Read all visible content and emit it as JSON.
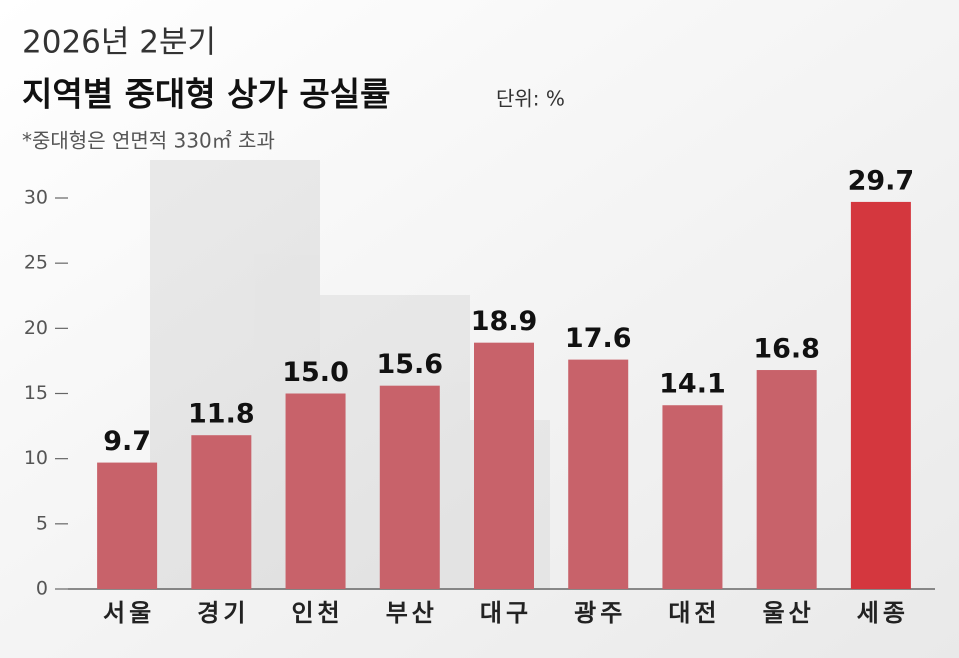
{
  "chart_data": {
    "type": "bar",
    "subtitle": "2026년 2분기",
    "title": "지역별 중대형 상가 공실률",
    "unit": "단위: %",
    "note": "*중대형은 연면적 330㎡ 초과",
    "categories": [
      "서울",
      "경기",
      "인천",
      "부산",
      "대구",
      "광주",
      "대전",
      "울산",
      "세종"
    ],
    "values": [
      9.7,
      11.8,
      15.0,
      15.6,
      18.9,
      17.6,
      14.1,
      16.8,
      29.7
    ],
    "value_labels": [
      "9.7",
      "11.8",
      "15.0",
      "15.6",
      "18.9",
      "17.6",
      "14.1",
      "16.8",
      "29.7"
    ],
    "colors": [
      "#c8626a",
      "#c8626a",
      "#c8626a",
      "#c8626a",
      "#c8626a",
      "#c8626a",
      "#c8626a",
      "#c8626a",
      "#d4373e"
    ],
    "ylim": [
      0,
      30
    ],
    "yticks": [
      0,
      5,
      10,
      15,
      20,
      25,
      30
    ],
    "grid": false
  }
}
